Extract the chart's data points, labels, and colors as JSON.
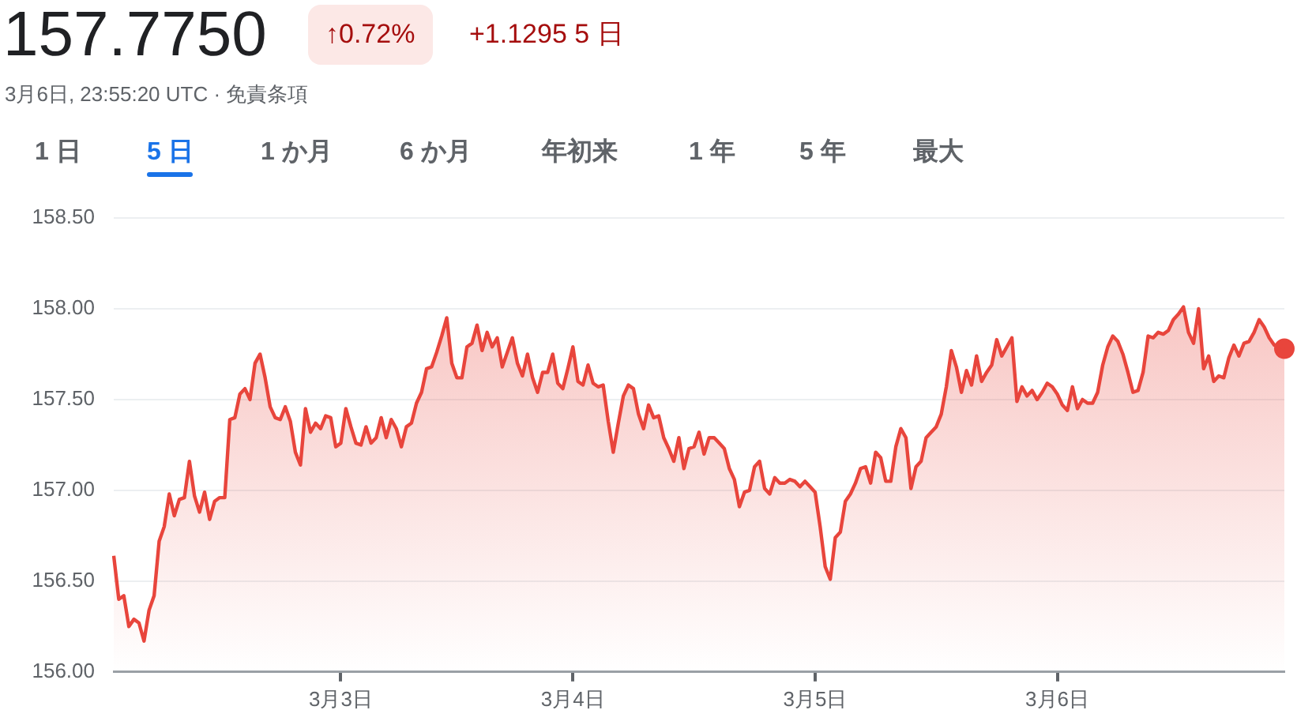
{
  "chart_data": {
    "type": "area",
    "title": "157.7750",
    "subtitle": "3月6日, 23:55:20 UTC · 免責条項",
    "annotations": [
      "↑0.72%",
      "+1.1295 5 日",
      "1 日",
      "5 日",
      "1 か月",
      "6 か月",
      "年初来",
      "1 年",
      "5 年",
      "最大"
    ],
    "categories": [
      null,
      null,
      null,
      null,
      null,
      null,
      null,
      null,
      null,
      null,
      null,
      null,
      null,
      null,
      null,
      null,
      null,
      null,
      null,
      null,
      null,
      null,
      null,
      null,
      null,
      null,
      null,
      null,
      null,
      null,
      null,
      null,
      null,
      null,
      null,
      null,
      null,
      null,
      null,
      null,
      null,
      null,
      null,
      null,
      null,
      "3月3日",
      null,
      null,
      null,
      null,
      null,
      null,
      null,
      null,
      null,
      null,
      null,
      null,
      null,
      null,
      null,
      null,
      null,
      null,
      null,
      null,
      null,
      null,
      null,
      null,
      null,
      null,
      null,
      null,
      null,
      null,
      null,
      null,
      null,
      null,
      null,
      null,
      null,
      null,
      null,
      null,
      null,
      null,
      null,
      null,
      null,
      "3月4日",
      null,
      null,
      null,
      null,
      null,
      null,
      null,
      null,
      null,
      null,
      null,
      null,
      null,
      null,
      null,
      null,
      null,
      null,
      null,
      null,
      null,
      null,
      null,
      null,
      null,
      null,
      null,
      null,
      null,
      null,
      null,
      null,
      null,
      null,
      null,
      null,
      null,
      null,
      null,
      null,
      null,
      null,
      null,
      null,
      null,
      null,
      null,
      "3月5日",
      null,
      null,
      null,
      null,
      null,
      null,
      null,
      null,
      null,
      null,
      null,
      null,
      null,
      null,
      null,
      null,
      null,
      null,
      null,
      null,
      null,
      null,
      null,
      null,
      null,
      null,
      null,
      null,
      null,
      null,
      null,
      null,
      null,
      null,
      null,
      null,
      null,
      null,
      null,
      null,
      null,
      null,
      null,
      null,
      null,
      null,
      null,
      "3月6日",
      null,
      null,
      null,
      null,
      null,
      null,
      null,
      null,
      null,
      null,
      null,
      null,
      null,
      null,
      null,
      null,
      null,
      null,
      null,
      null,
      null,
      null,
      null,
      null,
      null,
      null,
      null,
      null,
      null,
      null,
      null,
      null,
      null,
      null,
      null,
      null,
      null,
      null,
      null,
      null,
      null,
      null,
      null,
      null,
      null
    ],
    "ylim": [
      156,
      158.5
    ],
    "yticks": [
      {
        "value": 156,
        "label": "156.00"
      },
      {
        "value": 156.5,
        "label": "156.50"
      },
      {
        "value": 157,
        "label": "157.00"
      },
      {
        "value": 157.5,
        "label": "157.50"
      },
      {
        "value": 158,
        "label": "158.00"
      },
      {
        "value": 158.5,
        "label": "158.50"
      }
    ],
    "grid": "y",
    "legend": false,
    "series": [
      {
        "color": "#e8453c",
        "marker": "none",
        "values": [
          156.64,
          156.4,
          156.42,
          156.25,
          156.29,
          156.27,
          156.17,
          156.34,
          156.42,
          156.72,
          156.8,
          156.98,
          156.86,
          156.95,
          156.96,
          157.16,
          156.97,
          156.88,
          156.99,
          156.84,
          156.94,
          156.96,
          156.96,
          157.39,
          157.4,
          157.53,
          157.56,
          157.5,
          157.7,
          157.75,
          157.62,
          157.46,
          157.4,
          157.39,
          157.46,
          157.38,
          157.21,
          157.14,
          157.45,
          157.32,
          157.37,
          157.34,
          157.41,
          157.4,
          157.24,
          157.26,
          157.45,
          157.35,
          157.26,
          157.25,
          157.35,
          157.26,
          157.29,
          157.4,
          157.29,
          157.39,
          157.34,
          157.24,
          157.35,
          157.37,
          157.48,
          157.54,
          157.67,
          157.68,
          157.76,
          157.85,
          157.95,
          157.7,
          157.62,
          157.62,
          157.79,
          157.81,
          157.91,
          157.77,
          157.87,
          157.79,
          157.84,
          157.68,
          157.76,
          157.84,
          157.7,
          157.63,
          157.75,
          157.62,
          157.54,
          157.65,
          157.65,
          157.75,
          157.59,
          157.56,
          157.67,
          157.79,
          157.6,
          157.58,
          157.69,
          157.59,
          157.57,
          157.58,
          157.38,
          157.21,
          157.37,
          157.52,
          157.58,
          157.56,
          157.42,
          157.34,
          157.47,
          157.4,
          157.41,
          157.29,
          157.23,
          157.16,
          157.29,
          157.12,
          157.23,
          157.24,
          157.32,
          157.2,
          157.29,
          157.29,
          157.26,
          157.23,
          157.12,
          157.06,
          156.91,
          156.99,
          157.0,
          157.13,
          157.16,
          157.01,
          156.98,
          157.07,
          157.04,
          157.04,
          157.06,
          157.05,
          157.02,
          157.05,
          157.02,
          156.99,
          156.8,
          156.58,
          156.51,
          156.74,
          156.77,
          156.94,
          156.98,
          157.04,
          157.12,
          157.13,
          157.04,
          157.21,
          157.18,
          157.05,
          157.05,
          157.24,
          157.34,
          157.29,
          157.01,
          157.13,
          157.16,
          157.29,
          157.32,
          157.35,
          157.42,
          157.57,
          157.77,
          157.68,
          157.54,
          157.66,
          157.58,
          157.74,
          157.6,
          157.65,
          157.69,
          157.83,
          157.74,
          157.79,
          157.84,
          157.49,
          157.57,
          157.52,
          157.55,
          157.5,
          157.54,
          157.59,
          157.57,
          157.53,
          157.47,
          157.44,
          157.57,
          157.45,
          157.5,
          157.48,
          157.48,
          157.54,
          157.69,
          157.79,
          157.85,
          157.82,
          157.75,
          157.65,
          157.54,
          157.55,
          157.65,
          157.85,
          157.84,
          157.87,
          157.86,
          157.88,
          157.94,
          157.97,
          158.01,
          157.87,
          157.81,
          158.0,
          157.67,
          157.74,
          157.6,
          157.63,
          157.62,
          157.73,
          157.8,
          157.74,
          157.81,
          157.82,
          157.87,
          157.94,
          157.9,
          157.84,
          157.8,
          157.8,
          157.78
        ]
      },
      {
        "type": "scatter",
        "color": "#e8453c",
        "marker": "circle",
        "values": [
          null,
          null,
          null,
          null,
          null,
          null,
          null,
          null,
          null,
          null,
          null,
          null,
          null,
          null,
          null,
          null,
          null,
          null,
          null,
          null,
          null,
          null,
          null,
          null,
          null,
          null,
          null,
          null,
          null,
          null,
          null,
          null,
          null,
          null,
          null,
          null,
          null,
          null,
          null,
          null,
          null,
          null,
          null,
          null,
          null,
          null,
          null,
          null,
          null,
          null,
          null,
          null,
          null,
          null,
          null,
          null,
          null,
          null,
          null,
          null,
          null,
          null,
          null,
          null,
          null,
          null,
          null,
          null,
          null,
          null,
          null,
          null,
          null,
          null,
          null,
          null,
          null,
          null,
          null,
          null,
          null,
          null,
          null,
          null,
          null,
          null,
          null,
          null,
          null,
          null,
          null,
          null,
          null,
          null,
          null,
          null,
          null,
          null,
          null,
          null,
          null,
          null,
          null,
          null,
          null,
          null,
          null,
          null,
          null,
          null,
          null,
          null,
          null,
          null,
          null,
          null,
          null,
          null,
          null,
          null,
          null,
          null,
          null,
          null,
          null,
          null,
          null,
          null,
          null,
          null,
          null,
          null,
          null,
          null,
          null,
          null,
          null,
          null,
          null,
          null,
          null,
          null,
          null,
          null,
          null,
          null,
          null,
          null,
          null,
          null,
          null,
          null,
          null,
          null,
          null,
          null,
          null,
          null,
          null,
          null,
          null,
          null,
          null,
          null,
          null,
          null,
          null,
          null,
          null,
          null,
          null,
          null,
          null,
          null,
          null,
          null,
          null,
          null,
          null,
          null,
          null,
          null,
          null,
          null,
          null,
          null,
          null,
          null,
          null,
          null,
          null,
          null,
          null,
          null,
          null,
          null,
          null,
          null,
          null,
          null,
          null,
          null,
          null,
          null,
          null,
          null,
          null,
          null,
          null,
          null,
          null,
          null,
          null,
          null,
          null,
          null,
          null,
          null,
          null,
          null,
          null,
          null,
          null,
          null,
          null,
          null,
          null,
          null,
          null,
          null,
          null,
          null,
          157.78
        ]
      }
    ]
  }
}
